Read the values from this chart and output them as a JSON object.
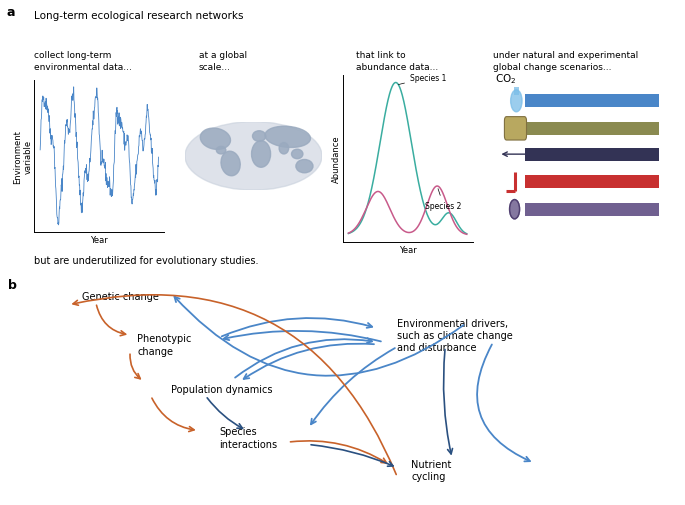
{
  "panel_a_title": "Long-term ecological research networks",
  "panel_a_subtitle_bottom": "but are underutilized for evolutionary studies.",
  "col1_text": "collect long-term\nenvironmental data...",
  "col2_text": "at a global\nscale...",
  "col3_text": "that link to\nabundance data...",
  "col4_text": "under natural and experimental\nglobal change scenarios...",
  "env_ylabel": "Environment\nvariable",
  "env_xlabel": "Year",
  "abund_ylabel": "Abundance",
  "abund_xlabel": "Year",
  "species1_label": "Species 1",
  "species2_label": "Species 2",
  "blue_color": "#4a86c8",
  "orange_color": "#c8622a",
  "dark_blue": "#2a5080",
  "teal_color": "#3aada0",
  "pink_color": "#c85a8a",
  "world_base": "#c8d0dc",
  "world_land": "#9aaabf",
  "node_genetic": "Genetic change",
  "node_phenotypic": "Phenotypic\nchange",
  "node_env": "Environmental drivers,\nsuch as climate change\nand disturbance",
  "node_population": "Population dynamics",
  "node_species": "Species\ninteractions",
  "node_nutrient": "Nutrient\ncycling",
  "co2_bar_color": "#4a86c8",
  "bar2_color": "#8a8a50",
  "bar3_color": "#333355",
  "bar4_color": "#c83030",
  "bar5_color": "#706090"
}
